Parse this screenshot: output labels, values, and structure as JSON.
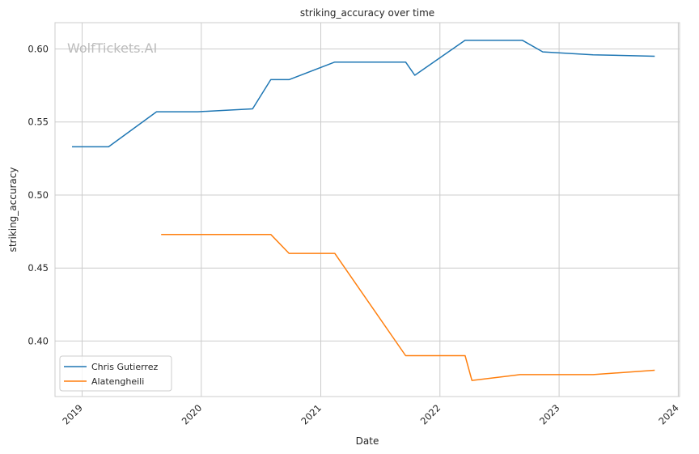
{
  "chart_data": {
    "type": "line",
    "title": "striking_accuracy over time",
    "xlabel": "Date",
    "ylabel": "striking_accuracy",
    "watermark": "WolfTickets.AI",
    "xlim": [
      "2018-10-10",
      "2024-01-05"
    ],
    "ylim": [
      0.362,
      0.618
    ],
    "x_ticks": [
      "2019",
      "2020",
      "2021",
      "2022",
      "2023",
      "2024"
    ],
    "y_ticks": [
      "0.40",
      "0.45",
      "0.50",
      "0.55",
      "0.60"
    ],
    "grid": true,
    "legend_position": "lower-left",
    "series": [
      {
        "name": "Chris Gutierrez",
        "color": "#1f77b4",
        "points": [
          [
            "2018-12-01",
            0.533
          ],
          [
            "2019-03-23",
            0.533
          ],
          [
            "2019-08-17",
            0.557
          ],
          [
            "2019-12-21",
            0.557
          ],
          [
            "2020-06-06",
            0.559
          ],
          [
            "2020-08-01",
            0.579
          ],
          [
            "2020-09-26",
            0.579
          ],
          [
            "2021-02-13",
            0.591
          ],
          [
            "2021-09-18",
            0.591
          ],
          [
            "2021-10-16",
            0.582
          ],
          [
            "2022-03-19",
            0.606
          ],
          [
            "2022-09-10",
            0.606
          ],
          [
            "2022-11-12",
            0.598
          ],
          [
            "2023-04-15",
            0.596
          ],
          [
            "2023-10-21",
            0.595
          ]
        ]
      },
      {
        "name": "Alatengheili",
        "color": "#ff7f0e",
        "points": [
          [
            "2019-08-31",
            0.473
          ],
          [
            "2020-08-01",
            0.473
          ],
          [
            "2020-09-26",
            0.46
          ],
          [
            "2021-02-13",
            0.46
          ],
          [
            "2021-09-18",
            0.39
          ],
          [
            "2022-03-19",
            0.39
          ],
          [
            "2022-04-09",
            0.373
          ],
          [
            "2022-09-03",
            0.377
          ],
          [
            "2023-04-15",
            0.377
          ],
          [
            "2023-10-21",
            0.38
          ]
        ]
      }
    ]
  }
}
